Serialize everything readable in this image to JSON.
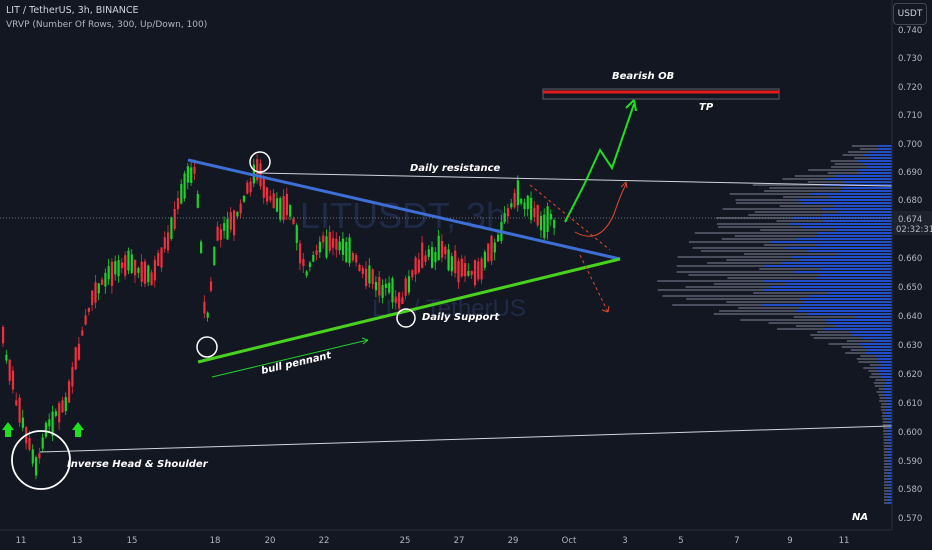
{
  "header": {
    "symbol_line": "LIT / TetherUS, 3h, BINANCE",
    "indicator_line": "VRVP (Number Of Rows, 300, Up/Down, 100)"
  },
  "currency_button": "USDT",
  "watermark": {
    "main": "LITUSDT, 3h",
    "sub": "LIT / TetherUS"
  },
  "price_axis": {
    "ticks": [
      "0.740",
      "0.730",
      "0.720",
      "0.710",
      "0.700",
      "0.690",
      "0.680",
      "0.660",
      "0.650",
      "0.640",
      "0.630",
      "0.620",
      "0.610",
      "0.600",
      "0.590",
      "0.580",
      "0.570"
    ],
    "current_price": "0.674",
    "countdown": "02:32:31"
  },
  "time_axis": {
    "ticks": [
      "11",
      "13",
      "15",
      "18",
      "20",
      "22",
      "25",
      "27",
      "29",
      "Oct",
      "3",
      "5",
      "7",
      "9",
      "11"
    ]
  },
  "annotations": {
    "bearish_ob": "Bearish OB",
    "tp": "TP",
    "daily_resistance": "Daily resistance",
    "daily_support": "Daily Support",
    "bull_pennant": "bull pennant",
    "inverse_hs": "Inverse Head & Shoulder",
    "na": "NA"
  },
  "colors": {
    "background": "#131722",
    "bull_candle": "#26a69a",
    "bull_candle_drawn": "#1fd12b",
    "bear_candle": "#ef2f3b",
    "resistance_line": "#3d6fd6",
    "support_line": "#49d11f",
    "arrow": "#1fe01f",
    "bearish_ob": "#e01b1b"
  }
}
